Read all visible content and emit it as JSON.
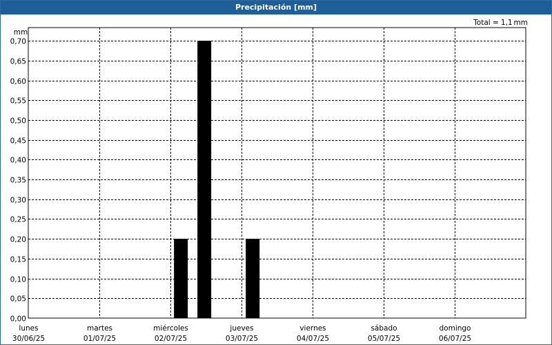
{
  "window": {
    "title": "Precipitación [mm]"
  },
  "summary": {
    "total_label": "Total =",
    "total_value": "1,1",
    "total_unit": "mm"
  },
  "colors": {
    "title_bg": "#1f5f99",
    "bar": "#000000",
    "grid": "#000000"
  },
  "chart_data": {
    "type": "bar",
    "title": "Precipitación [mm]",
    "ylabel": "mm",
    "xlabel": "",
    "ylim": [
      0,
      0.7
    ],
    "yticks": [
      "0,00",
      "0,05",
      "0,10",
      "0,15",
      "0,20",
      "0,25",
      "0,30",
      "0,35",
      "0,40",
      "0,45",
      "0,50",
      "0,55",
      "0,60",
      "0,65",
      "0,70"
    ],
    "grid": true,
    "days": [
      {
        "name": "lunes",
        "date": "30/06/25"
      },
      {
        "name": "martes",
        "date": "01/07/25"
      },
      {
        "name": "miércoles",
        "date": "02/07/25"
      },
      {
        "name": "jueves",
        "date": "03/07/25"
      },
      {
        "name": "viernes",
        "date": "04/07/25"
      },
      {
        "name": "sábado",
        "date": "05/07/25"
      },
      {
        "name": "domingo",
        "date": "06/07/25"
      }
    ],
    "series": [
      {
        "values": [
          {
            "day_offset": 2.05,
            "value": 0.2
          },
          {
            "day_offset": 2.38,
            "value": 0.7
          },
          {
            "day_offset": 3.06,
            "value": 0.2
          }
        ]
      }
    ]
  }
}
